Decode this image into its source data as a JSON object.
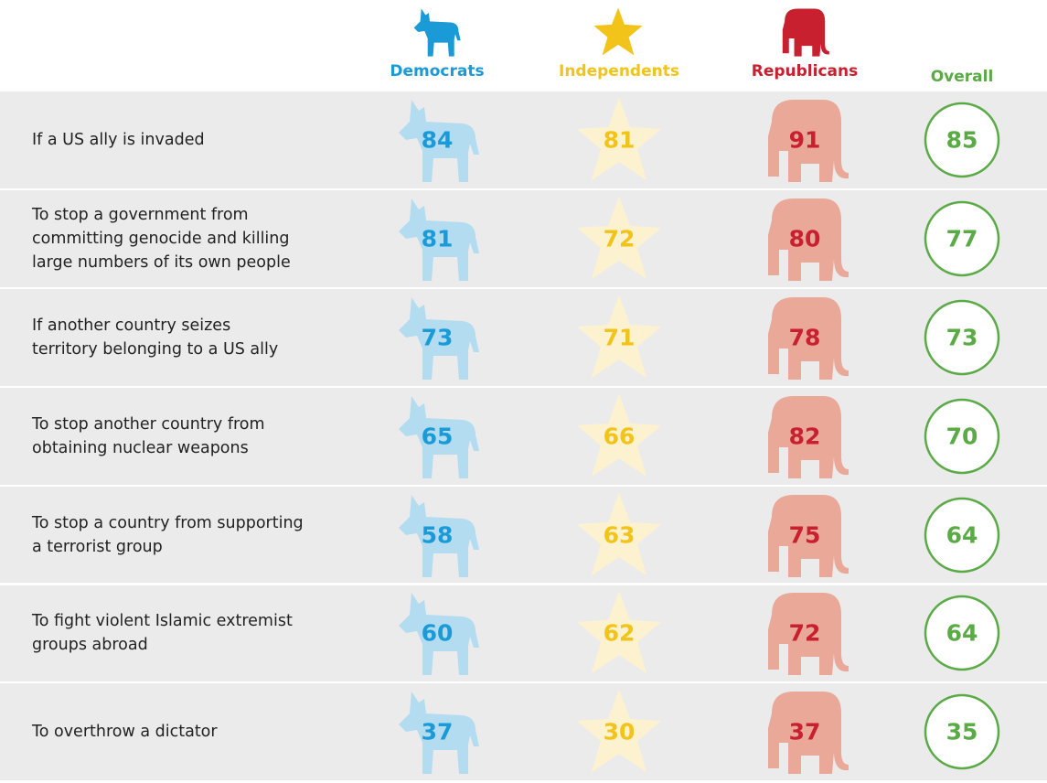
{
  "table": {
    "columns": [
      "Democrats",
      "Independents",
      "Republicans",
      "Overall"
    ],
    "rows": [
      {
        "label": [
          "If a US ally is invaded"
        ],
        "values": [
          "84",
          "81",
          "91",
          "85"
        ]
      },
      {
        "label": [
          "To stop a government from",
          "committing genocide and killing",
          "large numbers of its own people"
        ],
        "values": [
          "81",
          "72",
          "80",
          "77"
        ]
      },
      {
        "label": [
          "If another country seizes",
          "territory belonging to a US ally"
        ],
        "values": [
          "73",
          "71",
          "78",
          "73"
        ]
      },
      {
        "label": [
          "To stop another country from",
          "obtaining nuclear weapons"
        ],
        "values": [
          "65",
          "66",
          "82",
          "70"
        ]
      },
      {
        "label": [
          "To stop a country from supporting",
          "a terrorist group"
        ],
        "values": [
          "58",
          "63",
          "75",
          "64"
        ]
      },
      {
        "label": [
          "To fight violent Islamic extremist",
          "groups abroad"
        ],
        "values": [
          "60",
          "62",
          "72",
          "64"
        ]
      },
      {
        "label": [
          "To overthrow a dictator"
        ],
        "values": [
          "37",
          "30",
          "37",
          "35"
        ]
      }
    ]
  }
}
